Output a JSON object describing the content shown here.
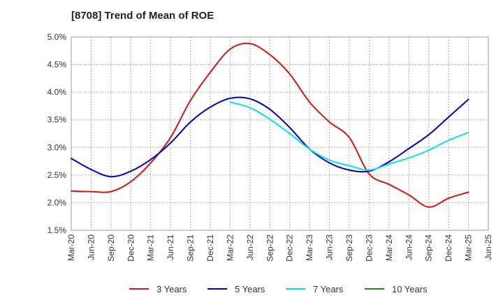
{
  "chart_data": {
    "type": "line",
    "title": "[8708]  Trend of Mean of ROE",
    "xlabel": "",
    "ylabel": "",
    "ylim": [
      1.5,
      5.0
    ],
    "y_ticks": [
      "1.5%",
      "2.0%",
      "2.5%",
      "3.0%",
      "3.5%",
      "4.0%",
      "4.5%",
      "5.0%"
    ],
    "y_tick_values": [
      1.5,
      2.0,
      2.5,
      3.0,
      3.5,
      4.0,
      4.5,
      5.0
    ],
    "categories": [
      "Mar-20",
      "Jun-20",
      "Sep-20",
      "Dec-20",
      "Mar-21",
      "Jun-21",
      "Sep-21",
      "Dec-21",
      "Mar-22",
      "Jun-22",
      "Sep-22",
      "Dec-22",
      "Mar-23",
      "Jun-23",
      "Sep-23",
      "Dec-23",
      "Mar-24",
      "Jun-24",
      "Sep-24",
      "Dec-24",
      "Mar-25",
      "Jun-25"
    ],
    "grid": true,
    "legend_position": "bottom",
    "series": [
      {
        "name": "3 Years",
        "color": "#dd1111",
        "values": [
          2.21,
          2.2,
          2.2,
          2.38,
          2.72,
          3.18,
          3.85,
          4.36,
          4.78,
          4.88,
          4.68,
          4.33,
          3.82,
          3.46,
          3.18,
          2.52,
          2.33,
          2.14,
          1.92,
          2.08,
          2.19,
          null
        ]
      },
      {
        "name": "5 Years",
        "color": "#0000cc",
        "values": [
          2.8,
          2.6,
          2.47,
          2.57,
          2.78,
          3.08,
          3.46,
          3.73,
          3.89,
          3.88,
          3.69,
          3.36,
          2.97,
          2.72,
          2.59,
          2.57,
          2.74,
          2.98,
          3.23,
          3.55,
          3.87,
          null
        ]
      },
      {
        "name": "7 Years",
        "color": "#00e5ee",
        "values": [
          null,
          null,
          null,
          null,
          null,
          null,
          null,
          null,
          3.82,
          3.72,
          3.51,
          3.25,
          2.97,
          2.77,
          2.67,
          2.59,
          2.7,
          2.81,
          2.95,
          3.13,
          3.27,
          null
        ]
      },
      {
        "name": "10 Years",
        "color": "#228822",
        "values": [
          null,
          null,
          null,
          null,
          null,
          null,
          null,
          null,
          null,
          null,
          null,
          null,
          null,
          null,
          null,
          null,
          null,
          null,
          null,
          null,
          null,
          null
        ]
      }
    ]
  }
}
